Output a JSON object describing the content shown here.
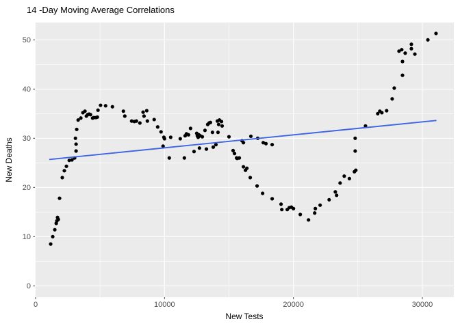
{
  "chart_data": {
    "type": "scatter",
    "title": "14 -Day Moving Average Correlations",
    "xlabel": "New Tests",
    "ylabel": "New Deaths",
    "x_ticks": [
      0,
      10000,
      20000,
      30000
    ],
    "y_ticks": [
      0,
      10,
      20,
      30,
      40,
      50
    ],
    "xlim": [
      -50,
      32450
    ],
    "ylim": [
      -2.3,
      53.5
    ],
    "grid": "ggplot-gray (white major + minor gridlines on gray panel)",
    "legend": "none",
    "colors": {
      "panel_bg": "#EBEBEB",
      "grid": "#FFFFFF",
      "point": "#000000",
      "trend_line": "#3F64E4",
      "tick_label": "#4D4D4D",
      "tick_mark": "#333333"
    },
    "trend_line": {
      "type": "linear-fit",
      "start": [
        1100,
        25.7
      ],
      "end": [
        31050,
        33.6
      ]
    },
    "points": [
      [
        1170,
        8.5
      ],
      [
        1330,
        10.0
      ],
      [
        1490,
        11.4
      ],
      [
        1600,
        12.7
      ],
      [
        1650,
        13.2
      ],
      [
        1700,
        13.9
      ],
      [
        1760,
        13.5
      ],
      [
        1860,
        17.8
      ],
      [
        2070,
        22.0
      ],
      [
        2230,
        23.4
      ],
      [
        2390,
        24.3
      ],
      [
        2610,
        25.5
      ],
      [
        2820,
        25.6
      ],
      [
        3030,
        26.0
      ],
      [
        3140,
        27.4
      ],
      [
        3140,
        28.8
      ],
      [
        3090,
        30.0
      ],
      [
        3190,
        31.8
      ],
      [
        3300,
        33.7
      ],
      [
        3510,
        34.1
      ],
      [
        3670,
        35.2
      ],
      [
        3830,
        35.5
      ],
      [
        3940,
        34.5
      ],
      [
        4040,
        34.8
      ],
      [
        4150,
        34.9
      ],
      [
        4260,
        34.8
      ],
      [
        4420,
        34.1
      ],
      [
        4520,
        34.2
      ],
      [
        4680,
        34.2
      ],
      [
        4790,
        34.3
      ],
      [
        4840,
        35.7
      ],
      [
        5040,
        36.7
      ],
      [
        5430,
        36.6
      ],
      [
        5960,
        36.4
      ],
      [
        6810,
        35.5
      ],
      [
        6920,
        34.5
      ],
      [
        7450,
        33.5
      ],
      [
        7660,
        33.4
      ],
      [
        7820,
        33.5
      ],
      [
        8090,
        33.1
      ],
      [
        8340,
        35.3
      ],
      [
        8620,
        35.6
      ],
      [
        8410,
        34.5
      ],
      [
        8670,
        33.5
      ],
      [
        9200,
        33.8
      ],
      [
        9470,
        32.3
      ],
      [
        9730,
        31.3
      ],
      [
        9890,
        28.4
      ],
      [
        9950,
        30.2
      ],
      [
        10000,
        29.9
      ],
      [
        10370,
        26.0
      ],
      [
        10480,
        30.2
      ],
      [
        11220,
        29.9
      ],
      [
        11540,
        26.0
      ],
      [
        11600,
        30.5
      ],
      [
        11700,
        30.9
      ],
      [
        11860,
        30.7
      ],
      [
        12020,
        32.0
      ],
      [
        12290,
        27.3
      ],
      [
        12500,
        31.0
      ],
      [
        12550,
        30.5
      ],
      [
        12610,
        30.2
      ],
      [
        12660,
        30.7
      ],
      [
        12710,
        28.0
      ],
      [
        12770,
        30.5
      ],
      [
        12930,
        30.3
      ],
      [
        13140,
        31.6
      ],
      [
        13250,
        27.8
      ],
      [
        13350,
        32.8
      ],
      [
        13460,
        33.1
      ],
      [
        13560,
        33.2
      ],
      [
        13720,
        31.2
      ],
      [
        13780,
        28.2
      ],
      [
        13990,
        28.7
      ],
      [
        14100,
        33.5
      ],
      [
        14150,
        31.2
      ],
      [
        14200,
        32.8
      ],
      [
        14260,
        33.7
      ],
      [
        14420,
        33.4
      ],
      [
        14470,
        32.5
      ],
      [
        15000,
        30.3
      ],
      [
        15320,
        27.5
      ],
      [
        15430,
        26.9
      ],
      [
        15590,
        26.0
      ],
      [
        15640,
        25.9
      ],
      [
        15800,
        26.0
      ],
      [
        16010,
        29.5
      ],
      [
        16120,
        29.1
      ],
      [
        16120,
        24.2
      ],
      [
        16280,
        23.5
      ],
      [
        16390,
        23.9
      ],
      [
        16650,
        22.0
      ],
      [
        16700,
        30.4
      ],
      [
        17230,
        30.0
      ],
      [
        17180,
        20.3
      ],
      [
        17610,
        18.8
      ],
      [
        17660,
        29.1
      ],
      [
        17870,
        28.9
      ],
      [
        18350,
        28.7
      ],
      [
        18350,
        17.7
      ],
      [
        19040,
        16.6
      ],
      [
        19100,
        15.5
      ],
      [
        19520,
        15.5
      ],
      [
        19680,
        15.9
      ],
      [
        19840,
        16.0
      ],
      [
        20000,
        15.7
      ],
      [
        20530,
        14.5
      ],
      [
        21170,
        13.4
      ],
      [
        21650,
        14.8
      ],
      [
        21700,
        15.7
      ],
      [
        22070,
        16.4
      ],
      [
        22770,
        17.5
      ],
      [
        23250,
        19.1
      ],
      [
        23350,
        18.4
      ],
      [
        23620,
        20.9
      ],
      [
        23940,
        22.3
      ],
      [
        24340,
        21.8
      ],
      [
        24730,
        23.2
      ],
      [
        24840,
        23.5
      ],
      [
        24790,
        27.4
      ],
      [
        24790,
        30.0
      ],
      [
        25590,
        32.5
      ],
      [
        26540,
        35.0
      ],
      [
        26700,
        35.5
      ],
      [
        26860,
        35.2
      ],
      [
        27230,
        35.6
      ],
      [
        27660,
        38.0
      ],
      [
        27820,
        40.2
      ],
      [
        28460,
        42.8
      ],
      [
        28460,
        45.6
      ],
      [
        28190,
        47.7
      ],
      [
        28400,
        48.0
      ],
      [
        28670,
        47.3
      ],
      [
        29150,
        49.1
      ],
      [
        29150,
        48.2
      ],
      [
        29420,
        47.1
      ],
      [
        30430,
        50.0
      ],
      [
        31060,
        51.3
      ]
    ]
  }
}
